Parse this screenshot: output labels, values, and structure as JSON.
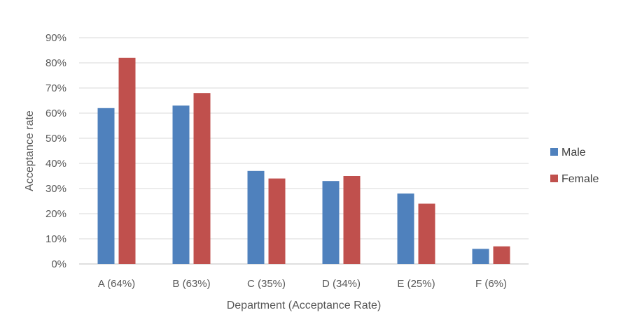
{
  "chart_data": {
    "type": "bar",
    "title": "",
    "xlabel": "Department (Acceptance Rate)",
    "ylabel": "Acceptance rate",
    "categories": [
      "A (64%)",
      "B (63%)",
      "C (35%)",
      "D (34%)",
      "E (25%)",
      "F (6%)"
    ],
    "series": [
      {
        "name": "Male",
        "color": "#4f81bd",
        "values": [
          62,
          63,
          37,
          33,
          28,
          6
        ]
      },
      {
        "name": "Female",
        "color": "#c0504d",
        "values": [
          82,
          68,
          34,
          35,
          24,
          7
        ]
      }
    ],
    "ylim": [
      0,
      90
    ],
    "ytick_step": 10,
    "ytick_suffix": "%",
    "grid": true,
    "gridline_color": "#d9d9d9",
    "legend_position": "right"
  }
}
